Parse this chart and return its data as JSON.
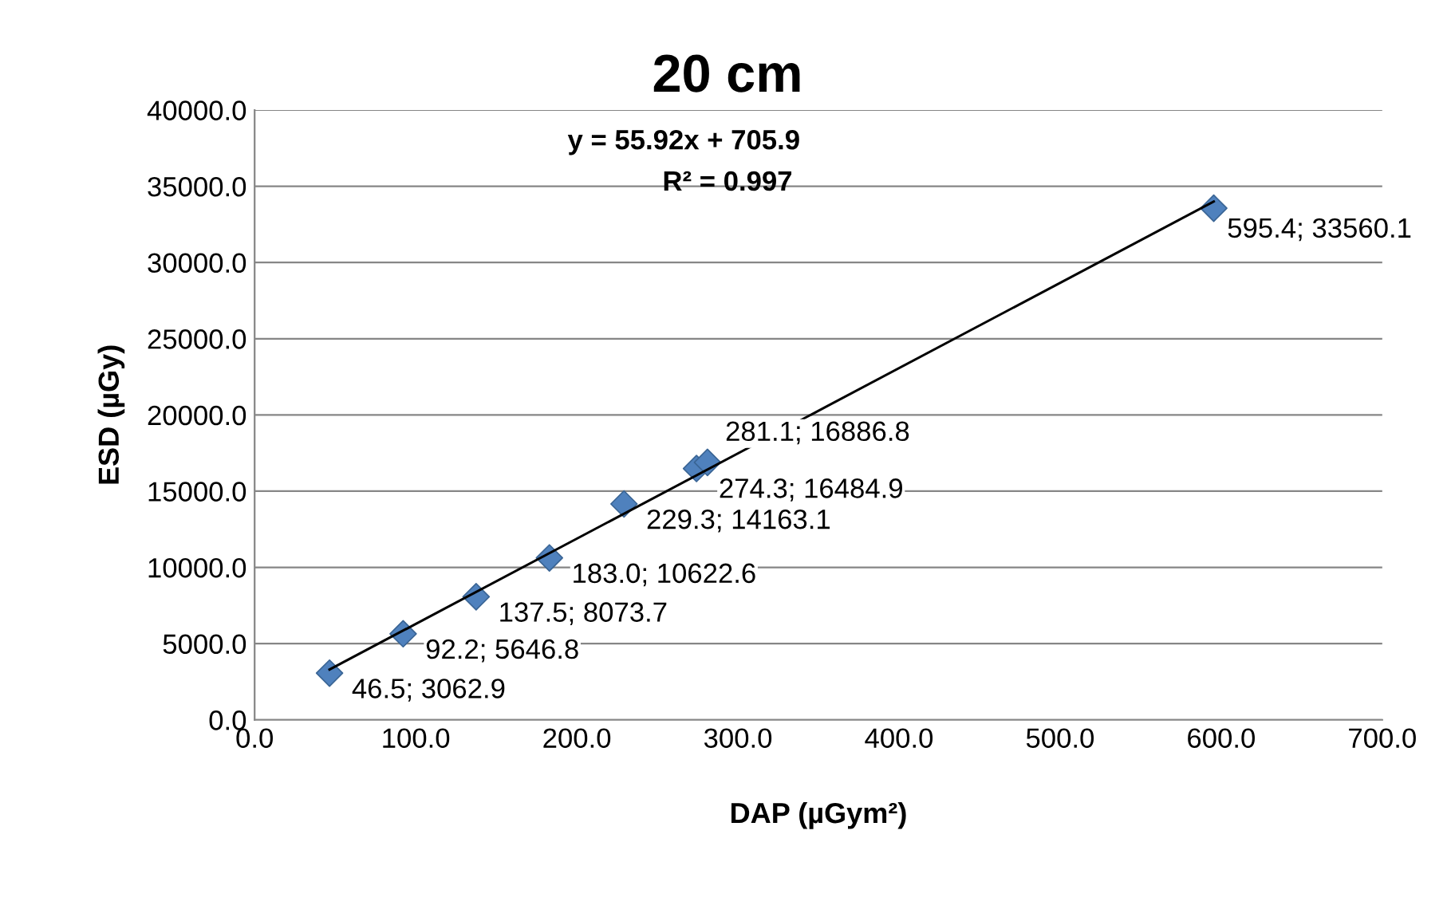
{
  "chart_data": {
    "type": "scatter",
    "title": "20 cm",
    "xlabel": "DAP (µGym²)",
    "ylabel": "ESD (µGy)",
    "xlim": [
      0,
      700
    ],
    "xticks": [
      {
        "value": 0,
        "label": "0.0"
      },
      {
        "value": 100,
        "label": "100.0"
      },
      {
        "value": 200,
        "label": "200.0"
      },
      {
        "value": 300,
        "label": "300.0"
      },
      {
        "value": 400,
        "label": "400.0"
      },
      {
        "value": 500,
        "label": "500.0"
      },
      {
        "value": 600,
        "label": "600.0"
      },
      {
        "value": 700,
        "label": "700.0"
      }
    ],
    "ylim": [
      0,
      40000
    ],
    "yticks": [
      {
        "value": 0,
        "label": "0.0"
      },
      {
        "value": 5000,
        "label": "5000.0"
      },
      {
        "value": 10000,
        "label": "10000.0"
      },
      {
        "value": 15000,
        "label": "15000.0"
      },
      {
        "value": 20000,
        "label": "20000.0"
      },
      {
        "value": 25000,
        "label": "25000.0"
      },
      {
        "value": 30000,
        "label": "30000.0"
      },
      {
        "value": 35000,
        "label": "35000.0"
      },
      {
        "value": 40000,
        "label": "40000.0"
      }
    ],
    "grid": "y",
    "legend": false,
    "marker": "diamond",
    "annotations": [
      "y = 55.92x + 705.9",
      "R² = 0.997"
    ],
    "series": [
      {
        "color": "#4f81bd",
        "x": [
          46.5,
          92.2,
          137.5,
          183.0,
          229.3,
          274.3,
          281.1,
          595.4
        ],
        "values": [
          3062.9,
          5646.8,
          8073.7,
          10622.6,
          14163.1,
          16484.9,
          16886.8,
          33560.1
        ],
        "value_labels": [
          "46.5; 3062.9",
          "92.2; 5646.8",
          "137.5; 8073.7",
          "183.0; 10622.6",
          "229.3; 14163.1",
          "274.3; 16484.9",
          "281.1; 16886.8",
          "595.4; 33560.1"
        ]
      },
      {
        "type": "line",
        "color": "#000000",
        "x": [
          46.5,
          595.4
        ],
        "values": [
          3300,
          34000
        ],
        "marker": "none",
        "line_style": "solid"
      }
    ]
  }
}
